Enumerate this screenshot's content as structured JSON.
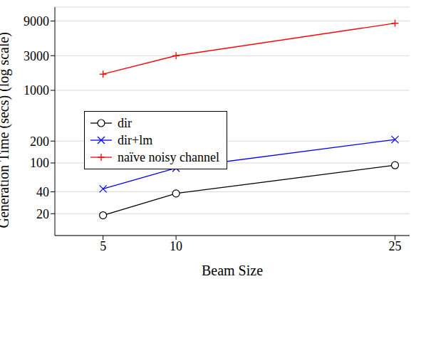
{
  "chart_data": {
    "type": "line",
    "x_label": "Beam Size",
    "y_label": "Generation Time (secs) (log scale)",
    "x": [
      5,
      10,
      25
    ],
    "xlim": [
      1.7,
      26
    ],
    "xticks": [
      5,
      10,
      25
    ],
    "ylim": [
      10,
      14000
    ],
    "yticks": [
      20,
      40,
      100,
      200,
      1000,
      3000,
      9000
    ],
    "log": "y",
    "grid": true,
    "legend": "left",
    "series": [
      {
        "name": "dir",
        "color": "#000000",
        "marker": "circle",
        "values": [
          19,
          38,
          93
        ]
      },
      {
        "name": "dir+lm",
        "color": "#0000ff",
        "marker": "x",
        "values": [
          44,
          85,
          210
        ]
      },
      {
        "name": "naïve noisy channel",
        "color": "#ff0000",
        "marker": "plus",
        "values": [
          1670,
          3000,
          8400
        ]
      }
    ]
  }
}
